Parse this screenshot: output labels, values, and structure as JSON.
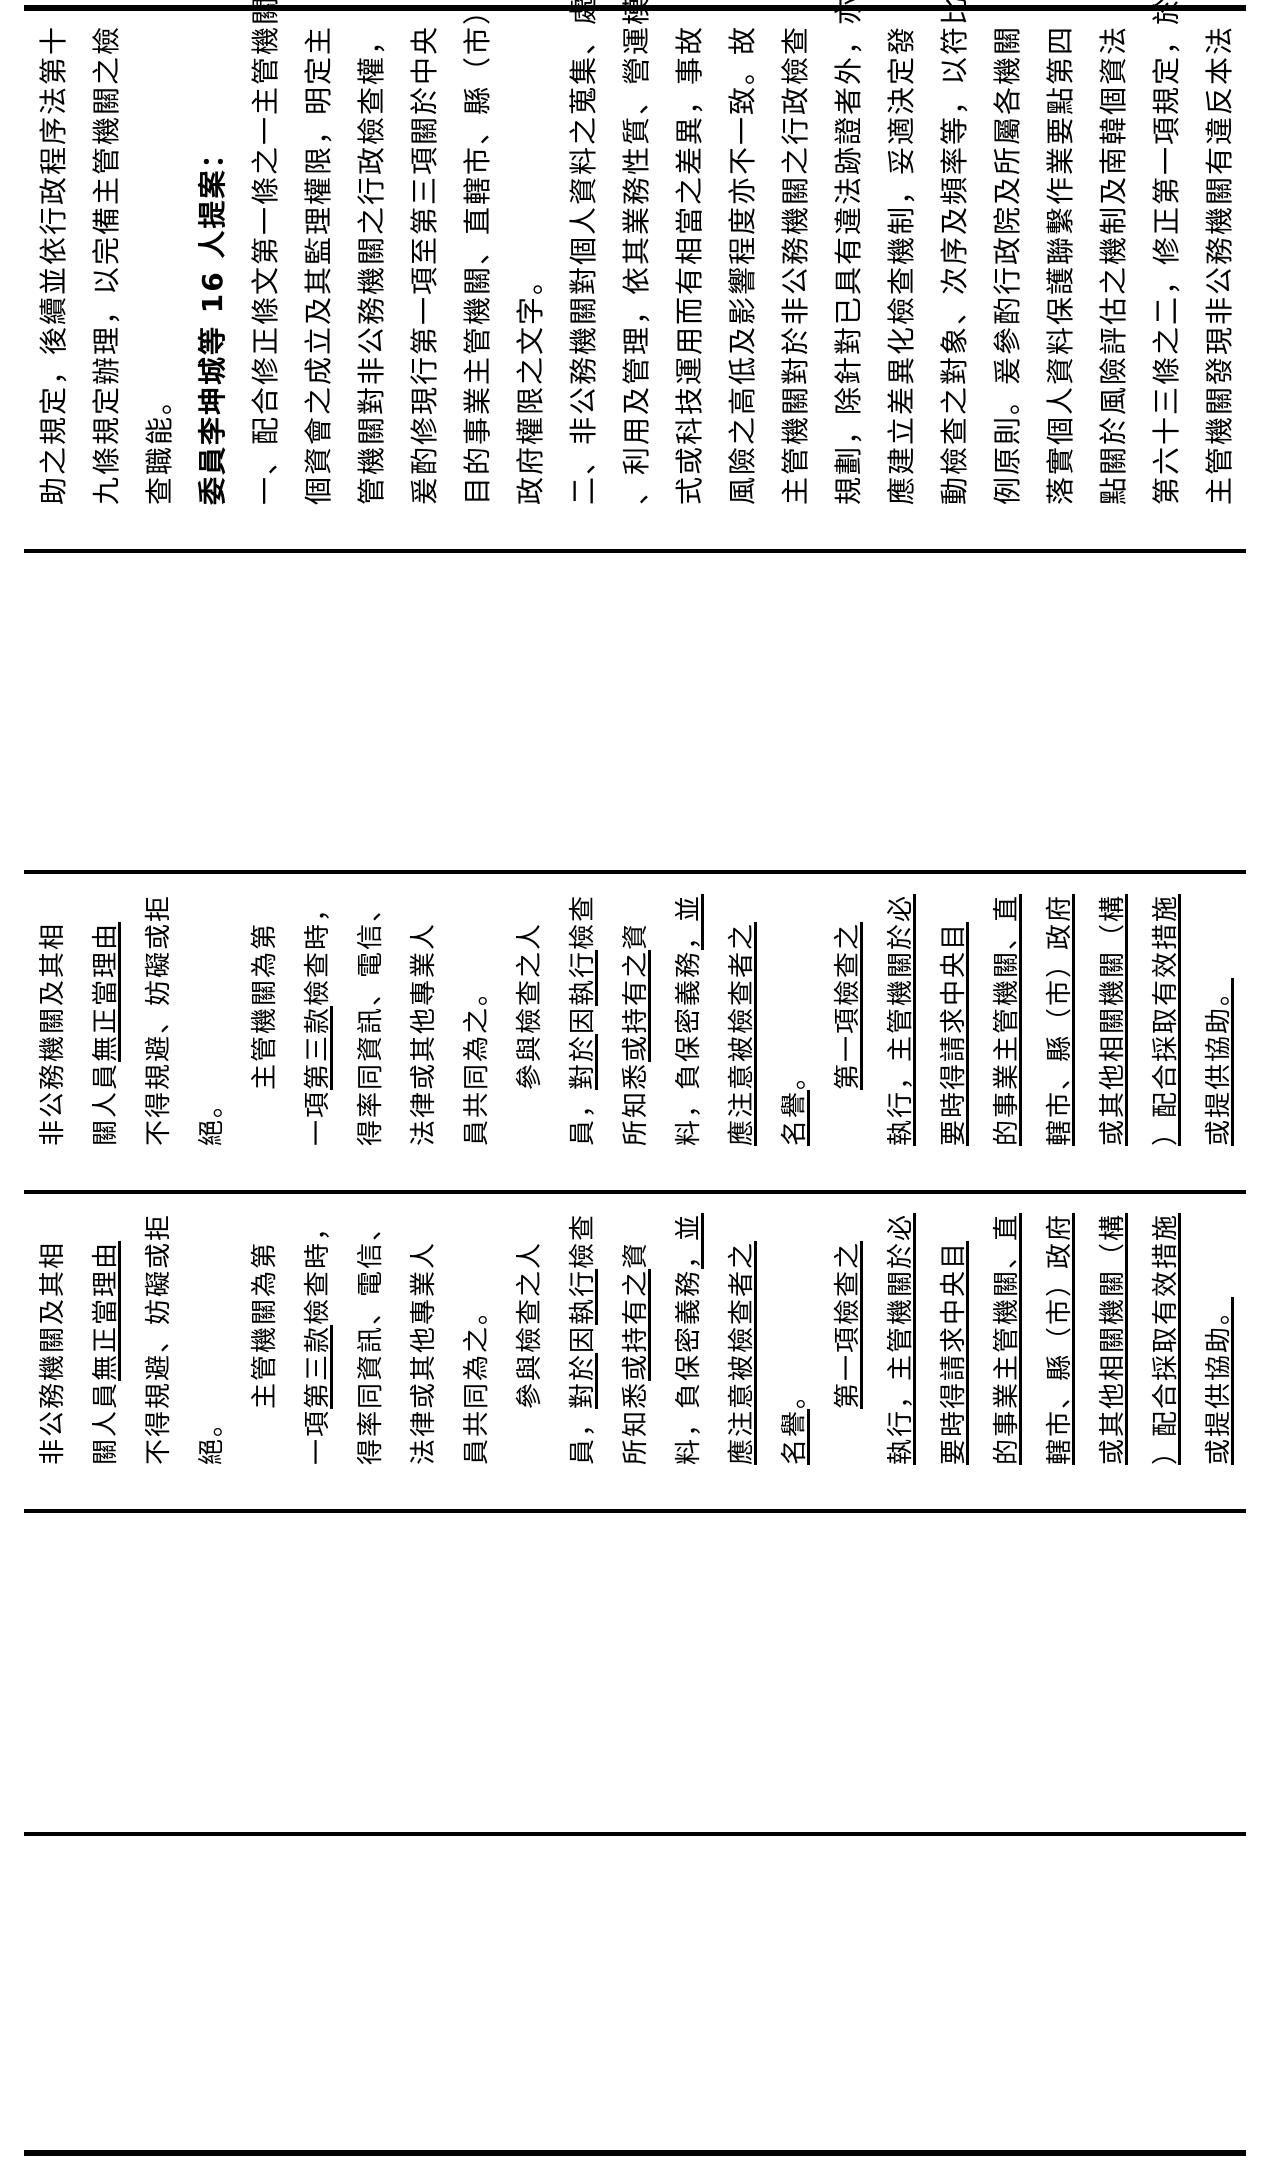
{
  "top_section": {
    "lines": [
      {
        "segs": [
          {
            "t": "助之規定，後續並依行政程序法第十"
          }
        ]
      },
      {
        "segs": [
          {
            "t": "九條規定辦理，以完備主管機關之檢"
          }
        ]
      },
      {
        "segs": [
          {
            "t": "查職能。"
          }
        ]
      },
      {
        "bold": true,
        "segs": [
          {
            "t": "委員李坤城等 16 人提案："
          }
        ]
      },
      {
        "segs": [
          {
            "t": "一、配合修正條文第一條之一主管機關"
          }
        ]
      },
      {
        "segs": [
          {
            "t": "個資會之成立及其監理權限，明定主"
          }
        ]
      },
      {
        "segs": [
          {
            "t": "管機關對非公務機關之行政檢查權，"
          }
        ]
      },
      {
        "segs": [
          {
            "t": "爰酌修現行第一項至第三項關於中央"
          }
        ]
      },
      {
        "segs": [
          {
            "t": "目的事業主管機關、直轄市、縣（市）"
          }
        ]
      },
      {
        "segs": [
          {
            "t": "政府權限之文字。"
          }
        ]
      },
      {
        "segs": [
          {
            "t": "二、非公務機關對個人資料之蒐集、處理"
          }
        ]
      },
      {
        "segs": [
          {
            "t": "、利用及管理，依其業務性質、營運模"
          }
        ]
      },
      {
        "segs": [
          {
            "t": "式或科技運用而有相當之差異，事故"
          }
        ]
      },
      {
        "segs": [
          {
            "t": "風險之高低及影響程度亦不一致。故"
          }
        ]
      },
      {
        "segs": [
          {
            "t": "主管機關對於非公務機關之行政檢查"
          }
        ]
      },
      {
        "segs": [
          {
            "t": "規劃，除針對已具有違法跡證者外，亦"
          }
        ]
      },
      {
        "segs": [
          {
            "t": "應建立差異化檢查機制，妥適決定發"
          }
        ]
      },
      {
        "segs": [
          {
            "t": "動檢查之對象、次序及頻率等，以符比"
          }
        ]
      },
      {
        "segs": [
          {
            "t": "例原則。爰參酌行政院及所屬各機關"
          }
        ]
      },
      {
        "segs": [
          {
            "t": "落實個人資料保護聯繫作業要點第四"
          }
        ]
      },
      {
        "segs": [
          {
            "t": "點關於風險評估之機制及南韓個資法"
          }
        ]
      },
      {
        "segs": [
          {
            "t": "第六十三條之二，修正第一項規定，於"
          }
        ]
      },
      {
        "segs": [
          {
            "t": "主管機關發現非公務機關有違反本法"
          }
        ]
      }
    ]
  },
  "provision_sections": [
    {
      "lines": [
        {
          "segs": [
            {
              "t": "非公務機關及其相"
            }
          ]
        },
        {
          "segs": [
            {
              "t": "關人員"
            },
            {
              "t": "無正當理由",
              "u": true
            }
          ]
        },
        {
          "segs": [
            {
              "t": "不得規避、妨礙或拒"
            }
          ]
        },
        {
          "segs": [
            {
              "t": "絕。"
            }
          ]
        },
        {
          "segs": [
            {
              "t": "　　主管機關為第"
            }
          ]
        },
        {
          "segs": [
            {
              "t": "一項"
            },
            {
              "t": "第三款",
              "u": true
            },
            {
              "t": "檢查時，"
            }
          ]
        },
        {
          "segs": [
            {
              "t": "得率同資訊、電信、"
            }
          ]
        },
        {
          "segs": [
            {
              "t": "法律或其他專業人"
            }
          ]
        },
        {
          "segs": [
            {
              "t": "員共同為之。"
            }
          ]
        },
        {
          "segs": [
            {
              "t": "　　參與檢查之人"
            }
          ]
        },
        {
          "segs": [
            {
              "t": "員，"
            },
            {
              "t": "對於",
              "u": true
            },
            {
              "t": "因"
            },
            {
              "t": "執行",
              "u": true
            },
            {
              "t": "檢查"
            }
          ]
        },
        {
          "segs": [
            {
              "t": "所知悉"
            },
            {
              "t": "或持有之",
              "u": true
            },
            {
              "t": "資"
            }
          ]
        },
        {
          "segs": [
            {
              "t": "料，負保密義務"
            },
            {
              "t": "，並",
              "u": true
            }
          ]
        },
        {
          "segs": [
            {
              "t": "應注意被檢查者之",
              "u": true
            }
          ]
        },
        {
          "segs": [
            {
              "t": "名譽",
              "u": true
            },
            {
              "t": "。"
            }
          ]
        },
        {
          "segs": [
            {
              "t": "　　"
            },
            {
              "t": "第一項檢查之",
              "u": true
            }
          ]
        },
        {
          "segs": [
            {
              "t": "執行，主管機關於必",
              "u": true
            }
          ]
        },
        {
          "segs": [
            {
              "t": "要時得請求中央目",
              "u": true
            }
          ]
        },
        {
          "segs": [
            {
              "t": "的事業主管機關、直",
              "u": true
            }
          ]
        },
        {
          "segs": [
            {
              "t": "轄市、縣（市）政府",
              "u": true
            }
          ]
        },
        {
          "segs": [
            {
              "t": "或其他相關機關（構",
              "u": true
            }
          ]
        },
        {
          "segs": [
            {
              "t": "）配合採取有效措施",
              "u": true
            }
          ]
        },
        {
          "segs": [
            {
              "t": "或提供協助。",
              "u": true
            }
          ]
        }
      ]
    },
    {
      "lines": [
        {
          "segs": [
            {
              "t": "非公務機關及其相"
            }
          ]
        },
        {
          "segs": [
            {
              "t": "關人員"
            },
            {
              "t": "無正當理由",
              "u": true
            }
          ]
        },
        {
          "segs": [
            {
              "t": "不得規避、妨礙或拒"
            }
          ]
        },
        {
          "segs": [
            {
              "t": "絕。"
            }
          ]
        },
        {
          "segs": [
            {
              "t": "　　主管機關為第"
            }
          ]
        },
        {
          "segs": [
            {
              "t": "一項"
            },
            {
              "t": "第三款",
              "u": true
            },
            {
              "t": "檢查時，"
            }
          ]
        },
        {
          "segs": [
            {
              "t": "得率同資訊、電信、"
            }
          ]
        },
        {
          "segs": [
            {
              "t": "法律或其他專業人"
            }
          ]
        },
        {
          "segs": [
            {
              "t": "員共同為之。"
            }
          ]
        },
        {
          "segs": [
            {
              "t": "　　參與檢查之人"
            }
          ]
        },
        {
          "segs": [
            {
              "t": "員，"
            },
            {
              "t": "對於",
              "u": true
            },
            {
              "t": "因"
            },
            {
              "t": "執行",
              "u": true
            },
            {
              "t": "檢查"
            }
          ]
        },
        {
          "segs": [
            {
              "t": "所知悉"
            },
            {
              "t": "或持有之",
              "u": true
            },
            {
              "t": "資"
            }
          ]
        },
        {
          "segs": [
            {
              "t": "料，負保密義務"
            },
            {
              "t": "，並",
              "u": true
            }
          ]
        },
        {
          "segs": [
            {
              "t": "應注意被檢查者之",
              "u": true
            }
          ]
        },
        {
          "segs": [
            {
              "t": "名譽",
              "u": true
            },
            {
              "t": "。"
            }
          ]
        },
        {
          "segs": [
            {
              "t": "　　"
            },
            {
              "t": "第一項檢查之",
              "u": true
            }
          ]
        },
        {
          "segs": [
            {
              "t": "執行，主管機關於必",
              "u": true
            }
          ]
        },
        {
          "segs": [
            {
              "t": "要時得請求中央目",
              "u": true
            }
          ]
        },
        {
          "segs": [
            {
              "t": "的事業主管機關、直",
              "u": true
            }
          ]
        },
        {
          "segs": [
            {
              "t": "轄市、縣（市）政府",
              "u": true
            }
          ]
        },
        {
          "segs": [
            {
              "t": "或其他相關機關（構",
              "u": true
            }
          ]
        },
        {
          "segs": [
            {
              "t": "）配合採取有效措施",
              "u": true
            }
          ]
        },
        {
          "segs": [
            {
              "t": "或提供協助。",
              "u": true
            }
          ]
        }
      ]
    }
  ]
}
